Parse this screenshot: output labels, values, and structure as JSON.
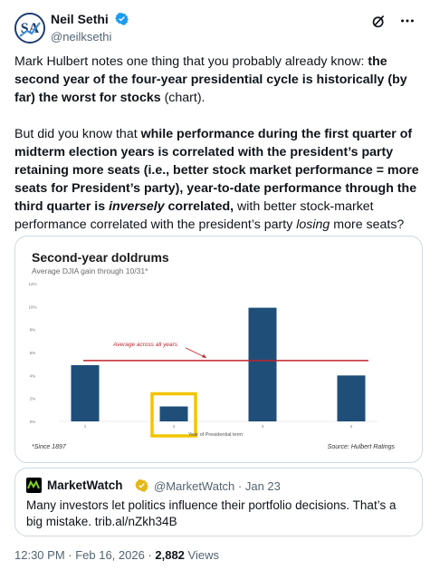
{
  "author": {
    "display_name": "Neil Sethi",
    "handle": "@neilksethi"
  },
  "icons": {
    "avatar": "sa-monogram-avatar",
    "verified": "verified-badge-icon",
    "grok": "grok-icon",
    "more": "more-options-icon"
  },
  "tweet": {
    "p1": {
      "t1": "Mark Hulbert notes one thing that you probably already know: ",
      "b1": "the second year of the four-year presidential cycle is historically (by far) the worst for stocks",
      "t2": " (chart)."
    },
    "p2": {
      "t1": "But did you know that ",
      "b1": "while performance during the first quarter of midterm election years is correlated with the president’s party retaining more seats (i.e., better stock market performance = more seats for President’s party), year-to-date performance through the third quarter is ",
      "bi1": "inversely",
      "b2": " correlated,",
      "t2": " with better stock-market performance correlated with the president’s party ",
      "i1": "losing",
      "t3": " more seats?"
    }
  },
  "chart_data": {
    "type": "bar",
    "title": "Second-year doldrums",
    "subtitle": "Average DJIA gain through 10/31*",
    "xlabel": "Year of Presidential term",
    "ylabel": "",
    "categories": [
      "1",
      "2",
      "3",
      "4"
    ],
    "values": [
      4.9,
      1.3,
      9.9,
      4.0
    ],
    "ylim": [
      0,
      12
    ],
    "yticks": [
      "0%",
      "2%",
      "4%",
      "6%",
      "8%",
      "10%",
      "12%"
    ],
    "average": 5.3,
    "average_label": "Average across all years",
    "highlight_category": "2",
    "footnote": "*Since 1897",
    "source": "Source: Hulbert Ratings",
    "colors": {
      "bar": "#1f4e79",
      "average": "#c0262d",
      "highlight": "#f2c500"
    }
  },
  "quote": {
    "name": "MarketWatch",
    "meta": "@MarketWatch · Jan 23",
    "text": "Many investors let politics influence their portfolio decisions. That’s a big mistake. trib.al/nZkh34B",
    "logo": "marketwatch-logo",
    "badge": "gold-verified-badge"
  },
  "footer": {
    "time": "12:30 PM · Feb 16, 2026 · ",
    "views_count": "2,882",
    "views_label": " Views"
  }
}
